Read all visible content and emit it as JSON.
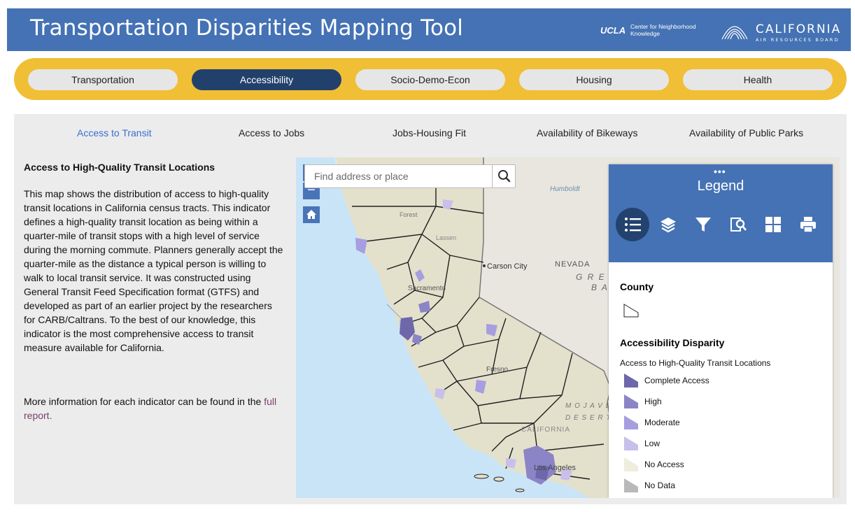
{
  "header": {
    "title": "Transportation Disparities Mapping Tool",
    "ucla": "UCLA",
    "center_line1": "Center for Neighborhood",
    "center_line2": "Knowledge",
    "carb_big": "CALIFORNIA",
    "carb_small": "AIR RESOURCES BOARD"
  },
  "nav": {
    "tabs": [
      {
        "label": "Transportation",
        "active": false
      },
      {
        "label": "Accessibility",
        "active": true
      },
      {
        "label": "Socio-Demo-Econ",
        "active": false
      },
      {
        "label": "Housing",
        "active": false
      },
      {
        "label": "Health",
        "active": false
      }
    ]
  },
  "subtabs": [
    {
      "label": "Access to Transit",
      "active": true
    },
    {
      "label": "Access to Jobs",
      "active": false
    },
    {
      "label": "Jobs-Housing Fit",
      "active": false
    },
    {
      "label": "Availability of Bikeways",
      "active": false
    },
    {
      "label": "Availability of Public Parks",
      "active": false
    }
  ],
  "description": {
    "title": "Access to High-Quality Transit Locations",
    "body": "This map shows the distribution of access to high-quality transit locations in California census tracts. This indicator defines a high-quality transit location as being within a quarter-mile of transit stops with a high level of service during the morning commute. Planners generally accept the quarter-mile as the distance a typical person is willing to walk to local transit service. It was constructed using General Transit Feed Specification format (GTFS) and developed as part of an earlier project by the researchers for CARB/Caltrans. To the best of our knowledge, this indicator is the most comprehensive access to transit measure available for California.",
    "more_text": "More information for each indicator can be found in the",
    "link_text": "full report."
  },
  "map": {
    "search_placeholder": "Find address or place",
    "zoom_in": "+",
    "zoom_out": "−",
    "labels": {
      "carson_city": "Carson City",
      "nevada": "NEVADA",
      "great_basin_1": "G R E",
      "great_basin_2": "B A",
      "humboldt": "Humboldt",
      "sacramento": "Sacramento",
      "fresno": "Fresno",
      "mojave_1": "M O J A V E",
      "mojave_2": "D E S E R T",
      "california": "CALIFORNIA",
      "los_angeles": "Los Angeles",
      "forest": "Forest",
      "lassen": "Lassen"
    }
  },
  "legend": {
    "title": "Legend",
    "menu_dots": "•••",
    "tools": [
      "list-icon",
      "layers-icon",
      "filter-icon",
      "query-icon",
      "basemap-icon",
      "print-icon"
    ],
    "county_heading": "County",
    "disparity_heading": "Accessibility Disparity",
    "sub_heading": "Access to High-Quality Transit Locations",
    "items": [
      {
        "label": "Complete Access",
        "color": "#6e67a9"
      },
      {
        "label": "High",
        "color": "#8b84c6"
      },
      {
        "label": "Moderate",
        "color": "#a79ee0"
      },
      {
        "label": "Low",
        "color": "#c8c0ea"
      },
      {
        "label": "No Access",
        "color": "#efedde"
      },
      {
        "label": "No Data",
        "color": "#b9b9b9"
      }
    ]
  },
  "colors": {
    "header_blue": "#4472b4",
    "nav_yellow": "#f0bf35",
    "nav_active": "#22406c",
    "link_purple": "#7a3f67"
  }
}
